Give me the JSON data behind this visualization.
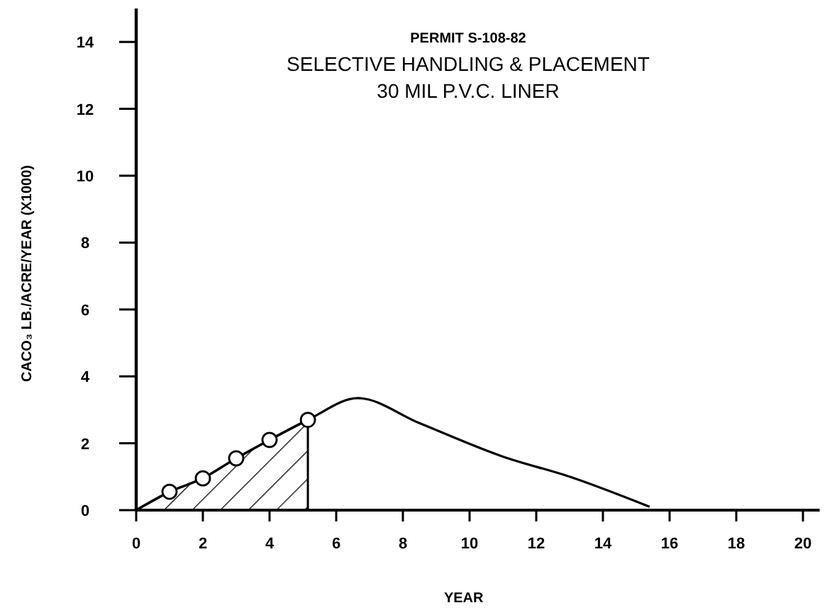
{
  "chart_data": {
    "type": "line",
    "title": "PERMIT S-108-82",
    "subtitle": "SELECTIVE HANDLING & PLACEMENT\n30 MIL P.V.C. LINER",
    "xlabel": "YEAR",
    "ylabel": "CACO₃ LB./ACRE/YEAR (X1000)",
    "xlim": [
      0,
      20.5
    ],
    "ylim": [
      0,
      15
    ],
    "xticks": [
      0,
      2,
      4,
      6,
      8,
      10,
      12,
      14,
      16,
      18,
      20
    ],
    "yticks": [
      0,
      2,
      4,
      6,
      8,
      10,
      12,
      14
    ],
    "series": [
      {
        "type": "area",
        "color": "#000000",
        "x": [
          0,
          1,
          2,
          3,
          4,
          5.15
        ],
        "values": [
          0,
          0.55,
          0.95,
          1.55,
          2.1,
          2.7
        ]
      },
      {
        "color": "#000000",
        "marker": "none",
        "x": [
          0,
          1,
          2,
          3,
          4,
          5.15,
          6.65,
          8.5,
          11,
          13,
          15.4
        ],
        "values": [
          0,
          0.55,
          0.95,
          1.55,
          2.1,
          2.7,
          3.35,
          2.6,
          1.6,
          1.0,
          0.1
        ]
      },
      {
        "type": "scatter",
        "color": "#000000",
        "marker": "circle",
        "x": [
          1,
          2,
          3,
          4,
          5.15
        ],
        "values": [
          0.55,
          0.95,
          1.55,
          2.1,
          2.7
        ]
      }
    ]
  }
}
